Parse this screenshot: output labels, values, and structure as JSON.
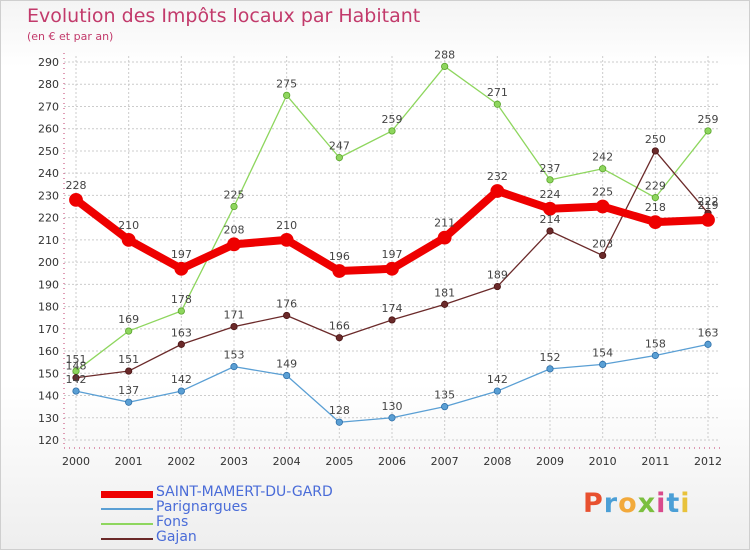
{
  "title": "Evolution des Impôts locaux par Habitant",
  "subtitle": "(en € et par an)",
  "logo": [
    "P",
    "r",
    "o",
    "x",
    "i",
    "t",
    "i"
  ],
  "colors": {
    "title": "#c23a6b",
    "legend_text": "#4a6cd8",
    "axis": "#c23a6b",
    "grid": "#cccccc",
    "logo": [
      "#e8502f",
      "#4b9fd6",
      "#f2a93b",
      "#7bbf3f",
      "#d94a8c",
      "#4b9fd6",
      "#e8c23b"
    ]
  },
  "chart_data": {
    "type": "line",
    "title": "Evolution des Impôts locaux par Habitant",
    "subtitle": "(en € et par an)",
    "x": [
      "2000",
      "2001",
      "2002",
      "2003",
      "2004",
      "2005",
      "2006",
      "2007",
      "2008",
      "2009",
      "2010",
      "2011",
      "2012"
    ],
    "ylim": [
      120,
      290
    ],
    "yticks": [
      120,
      130,
      140,
      150,
      160,
      170,
      180,
      190,
      200,
      210,
      220,
      230,
      240,
      250,
      260,
      270,
      280,
      290
    ],
    "grid": true,
    "legend_position": "bottom-left",
    "series": [
      {
        "name": "SAINT-MAMERT-DU-GARD",
        "color": "#ee0000",
        "values": [
          228,
          210,
          197,
          208,
          210,
          196,
          197,
          211,
          232,
          224,
          225,
          218,
          219
        ]
      },
      {
        "name": "Parignargues",
        "color": "#5a9fd4",
        "values": [
          142,
          137,
          142,
          153,
          149,
          128,
          130,
          135,
          142,
          152,
          154,
          158,
          163
        ]
      },
      {
        "name": "Fons",
        "color": "#8ed65e",
        "values": [
          151,
          169,
          178,
          225,
          275,
          247,
          259,
          288,
          271,
          237,
          242,
          229,
          259
        ]
      },
      {
        "name": "Gajan",
        "color": "#6b2a2a",
        "values": [
          148,
          151,
          163,
          171,
          176,
          166,
          174,
          181,
          189,
          214,
          203,
          250,
          222
        ]
      }
    ]
  }
}
